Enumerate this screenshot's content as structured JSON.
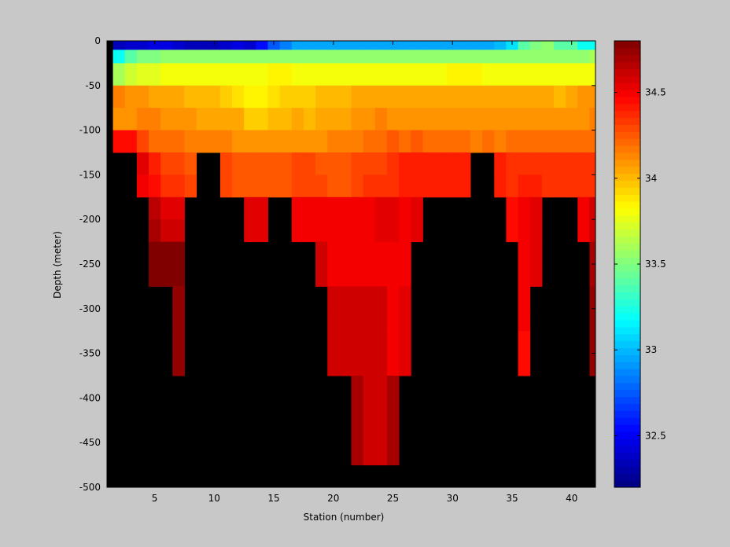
{
  "chart_data": {
    "type": "heatmap",
    "title": "",
    "xlabel": "Station (number)",
    "ylabel": "Depth (meter)",
    "xlim": [
      1,
      42
    ],
    "ylim": [
      -500,
      0
    ],
    "x_ticks": [
      "5",
      "10",
      "15",
      "20",
      "25",
      "30",
      "35",
      "40"
    ],
    "y_ticks": [
      "0",
      "-50",
      "-100",
      "-150",
      "-200",
      "-250",
      "-300",
      "-350",
      "-400",
      "-450",
      "-500"
    ],
    "colorbar": {
      "range": [
        32.2,
        34.8
      ],
      "ticks": [
        "32.5",
        "33",
        "33.5",
        "34",
        "34.5"
      ],
      "colormap": "jet"
    },
    "background_color": "#000000",
    "station_columns": [
      {
        "station": 2,
        "max_depth": -150,
        "values": [
          32.35,
          33.2,
          33.6,
          34.15,
          34.1,
          34.45
        ]
      },
      {
        "station": 3,
        "max_depth": -150,
        "values": [
          32.4,
          33.4,
          33.7,
          34.1,
          34.1,
          34.45
        ]
      },
      {
        "station": 4,
        "max_depth": -200,
        "values": [
          32.4,
          33.5,
          33.75,
          34.1,
          34.15,
          34.3,
          34.55,
          34.5
        ]
      },
      {
        "station": 5,
        "max_depth": -300,
        "values": [
          32.45,
          33.5,
          33.75,
          34.05,
          34.15,
          34.2,
          34.4,
          34.45,
          34.65,
          34.7,
          34.8,
          34.8
        ]
      },
      {
        "station": 6,
        "max_depth": -300,
        "values": [
          32.45,
          33.55,
          33.8,
          34.05,
          34.1,
          34.2,
          34.3,
          34.35,
          34.55,
          34.6,
          34.8,
          34.8
        ]
      },
      {
        "station": 7,
        "max_depth": -400,
        "values": [
          32.4,
          33.55,
          33.8,
          34.05,
          34.1,
          34.2,
          34.3,
          34.35,
          34.55,
          34.6,
          34.8,
          34.8,
          34.75,
          34.75,
          34.75,
          34.75
        ]
      },
      {
        "station": 8,
        "max_depth": -200,
        "values": [
          32.35,
          33.55,
          33.8,
          34.0,
          34.1,
          34.15,
          34.25,
          34.3
        ]
      },
      {
        "station": 9,
        "max_depth": -150,
        "values": [
          32.35,
          33.55,
          33.8,
          34.0,
          34.05,
          34.15
        ]
      },
      {
        "station": 10,
        "max_depth": -150,
        "values": [
          32.35,
          33.55,
          33.8,
          34.0,
          34.05,
          34.15
        ]
      },
      {
        "station": 11,
        "max_depth": -200,
        "values": [
          32.4,
          33.55,
          33.8,
          33.95,
          34.05,
          34.15,
          34.3,
          34.3
        ]
      },
      {
        "station": 12,
        "max_depth": -200,
        "values": [
          32.45,
          33.55,
          33.8,
          33.9,
          34.05,
          34.1,
          34.25,
          34.25
        ]
      },
      {
        "station": 13,
        "max_depth": -250,
        "values": [
          32.4,
          33.55,
          33.8,
          33.85,
          33.95,
          34.1,
          34.25,
          34.25,
          34.55,
          34.55
        ]
      },
      {
        "station": 14,
        "max_depth": -250,
        "values": [
          32.55,
          33.55,
          33.8,
          33.85,
          33.95,
          34.1,
          34.25,
          34.25,
          34.55,
          34.55
        ]
      },
      {
        "station": 15,
        "max_depth": -200,
        "values": [
          32.75,
          33.55,
          33.85,
          33.9,
          34.0,
          34.1,
          34.25,
          34.25
        ]
      },
      {
        "station": 16,
        "max_depth": -200,
        "values": [
          32.85,
          33.55,
          33.85,
          33.95,
          34.0,
          34.1,
          34.25,
          34.25
        ]
      },
      {
        "station": 17,
        "max_depth": -250,
        "values": [
          32.95,
          33.55,
          33.8,
          33.95,
          34.05,
          34.1,
          34.3,
          34.3,
          34.5,
          34.5
        ]
      },
      {
        "station": 18,
        "max_depth": -250,
        "values": [
          32.95,
          33.55,
          33.8,
          33.95,
          34.0,
          34.1,
          34.3,
          34.3,
          34.5,
          34.5
        ]
      },
      {
        "station": 19,
        "max_depth": -300,
        "values": [
          32.95,
          33.55,
          33.8,
          34.0,
          34.05,
          34.1,
          34.25,
          34.3,
          34.5,
          34.5,
          34.6,
          34.6
        ]
      },
      {
        "station": 20,
        "max_depth": -400,
        "values": [
          32.95,
          33.55,
          33.8,
          34.0,
          34.05,
          34.15,
          34.25,
          34.25,
          34.5,
          34.5,
          34.5,
          34.5,
          34.6,
          34.6,
          34.6,
          34.6
        ]
      },
      {
        "station": 21,
        "max_depth": -400,
        "values": [
          32.95,
          33.55,
          33.8,
          34.0,
          34.05,
          34.15,
          34.25,
          34.25,
          34.5,
          34.5,
          34.5,
          34.5,
          34.6,
          34.6,
          34.6,
          34.6
        ]
      },
      {
        "station": 22,
        "max_depth": -500,
        "values": [
          32.95,
          33.55,
          33.8,
          34.05,
          34.1,
          34.15,
          34.3,
          34.3,
          34.5,
          34.5,
          34.5,
          34.5,
          34.6,
          34.6,
          34.6,
          34.6,
          34.7,
          34.7,
          34.7,
          34.7
        ]
      },
      {
        "station": 23,
        "max_depth": -500,
        "values": [
          32.95,
          33.55,
          33.8,
          34.05,
          34.1,
          34.2,
          34.3,
          34.35,
          34.5,
          34.5,
          34.5,
          34.5,
          34.6,
          34.6,
          34.6,
          34.6,
          34.6,
          34.6,
          34.6,
          34.6
        ]
      },
      {
        "station": 24,
        "max_depth": -500,
        "values": [
          32.95,
          33.55,
          33.8,
          34.05,
          34.15,
          34.2,
          34.3,
          34.35,
          34.55,
          34.55,
          34.5,
          34.5,
          34.6,
          34.6,
          34.6,
          34.6,
          34.6,
          34.6,
          34.6,
          34.6
        ]
      },
      {
        "station": 25,
        "max_depth": -500,
        "values": [
          32.95,
          33.55,
          33.8,
          34.05,
          34.1,
          34.25,
          34.35,
          34.35,
          34.55,
          34.55,
          34.5,
          34.5,
          34.5,
          34.5,
          34.5,
          34.5,
          34.7,
          34.7,
          34.7,
          34.7
        ]
      },
      {
        "station": 26,
        "max_depth": -400,
        "values": [
          32.95,
          33.55,
          33.8,
          34.05,
          34.1,
          34.2,
          34.4,
          34.4,
          34.5,
          34.5,
          34.5,
          34.5,
          34.55,
          34.55,
          34.55,
          34.55
        ]
      },
      {
        "station": 27,
        "max_depth": -250,
        "values": [
          32.95,
          33.55,
          33.8,
          34.05,
          34.1,
          34.25,
          34.4,
          34.4,
          34.55,
          34.55
        ]
      },
      {
        "station": 28,
        "max_depth": -200,
        "values": [
          32.95,
          33.55,
          33.8,
          34.05,
          34.1,
          34.2,
          34.4,
          34.4
        ]
      },
      {
        "station": 29,
        "max_depth": -200,
        "values": [
          32.95,
          33.55,
          33.8,
          34.05,
          34.1,
          34.2,
          34.4,
          34.4
        ]
      },
      {
        "station": 30,
        "max_depth": -200,
        "values": [
          32.95,
          33.55,
          33.85,
          34.05,
          34.1,
          34.2,
          34.4,
          34.4
        ]
      },
      {
        "station": 31,
        "max_depth": -200,
        "values": [
          32.95,
          33.55,
          33.85,
          34.05,
          34.1,
          34.2,
          34.4,
          34.4
        ]
      },
      {
        "station": 32,
        "max_depth": -150,
        "values": [
          32.95,
          33.55,
          33.85,
          34.05,
          34.1,
          34.15
        ]
      },
      {
        "station": 33,
        "max_depth": -150,
        "values": [
          32.95,
          33.55,
          33.8,
          34.05,
          34.1,
          34.2
        ]
      },
      {
        "station": 34,
        "max_depth": -200,
        "values": [
          33.0,
          33.55,
          33.8,
          34.05,
          34.1,
          34.15,
          34.4,
          34.4
        ]
      },
      {
        "station": 35,
        "max_depth": -250,
        "values": [
          33.1,
          33.55,
          33.8,
          34.05,
          34.1,
          34.2,
          34.35,
          34.35,
          34.45,
          34.45
        ]
      },
      {
        "station": 36,
        "max_depth": -400,
        "values": [
          33.4,
          33.55,
          33.8,
          34.05,
          34.1,
          34.2,
          34.35,
          34.4,
          34.5,
          34.5,
          34.5,
          34.5,
          34.5,
          34.5,
          34.45,
          34.45
        ]
      },
      {
        "station": 37,
        "max_depth": -300,
        "values": [
          33.5,
          33.55,
          33.8,
          34.05,
          34.1,
          34.2,
          34.35,
          34.4,
          34.55,
          34.55,
          34.55,
          34.55
        ]
      },
      {
        "station": 38,
        "max_depth": -200,
        "values": [
          33.55,
          33.55,
          33.8,
          34.05,
          34.1,
          34.2,
          34.35,
          34.35
        ]
      },
      {
        "station": 39,
        "max_depth": -200,
        "values": [
          33.4,
          33.55,
          33.8,
          34.0,
          34.1,
          34.2,
          34.35,
          34.35
        ]
      },
      {
        "station": 40,
        "max_depth": -200,
        "values": [
          33.4,
          33.55,
          33.8,
          34.05,
          34.1,
          34.2,
          34.35,
          34.35
        ]
      },
      {
        "station": 41,
        "max_depth": -250,
        "values": [
          33.2,
          33.55,
          33.8,
          34.1,
          34.1,
          34.2,
          34.35,
          34.35,
          34.5,
          34.5
        ]
      },
      {
        "station": 42,
        "max_depth": -400,
        "values": [
          33.2,
          33.6,
          33.8,
          34.1,
          34.15,
          34.2,
          34.35,
          34.35,
          34.6,
          34.6,
          34.7,
          34.7,
          34.75,
          34.75,
          34.75,
          34.75
        ]
      }
    ]
  }
}
